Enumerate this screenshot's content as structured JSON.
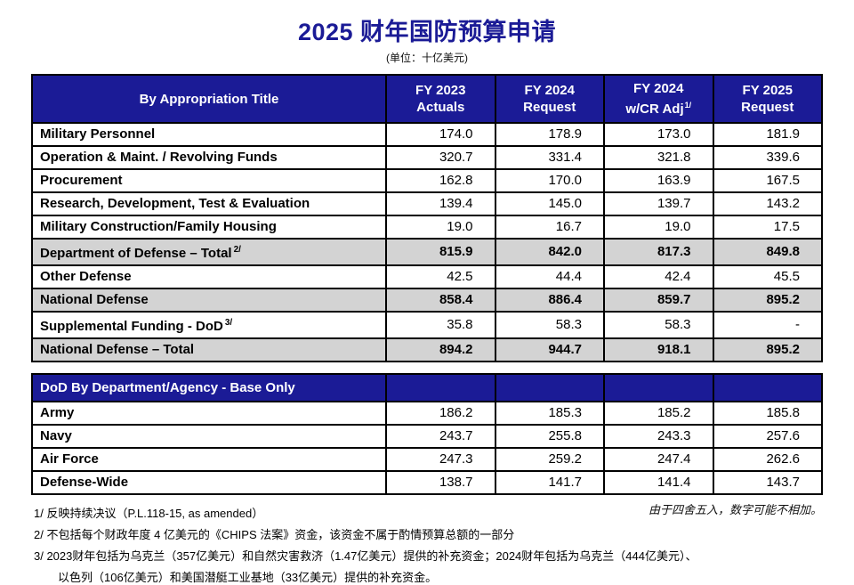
{
  "page": {
    "title": "2025 财年国防预算申请",
    "subtitle": "(单位：十亿美元)",
    "rounding_note": "由于四舍五入，数字可能不相加。"
  },
  "main_table": {
    "header": {
      "col0": "By Appropriation Title",
      "cols": [
        {
          "line1": "FY 2023",
          "line2": "Actuals",
          "sup": ""
        },
        {
          "line1": "FY 2024",
          "line2": "Request",
          "sup": ""
        },
        {
          "line1": "FY 2024",
          "line2": "w/CR Adj",
          "sup": "1/"
        },
        {
          "line1": "FY 2025",
          "line2": "Request",
          "sup": ""
        }
      ]
    },
    "rows": [
      {
        "label": "Military Personnel",
        "sup": "",
        "values": [
          "174.0",
          "178.9",
          "173.0",
          "181.9"
        ],
        "shaded": false
      },
      {
        "label": "Operation & Maint. / Revolving Funds",
        "sup": "",
        "values": [
          "320.7",
          "331.4",
          "321.8",
          "339.6"
        ],
        "shaded": false
      },
      {
        "label": "Procurement",
        "sup": "",
        "values": [
          "162.8",
          "170.0",
          "163.9",
          "167.5"
        ],
        "shaded": false
      },
      {
        "label": "Research, Development, Test & Evaluation",
        "sup": "",
        "values": [
          "139.4",
          "145.0",
          "139.7",
          "143.2"
        ],
        "shaded": false
      },
      {
        "label": "Military Construction/Family Housing",
        "sup": "",
        "values": [
          "19.0",
          "16.7",
          "19.0",
          "17.5"
        ],
        "shaded": false
      },
      {
        "label": "Department of Defense – Total",
        "sup": "2/",
        "values": [
          "815.9",
          "842.0",
          "817.3",
          "849.8"
        ],
        "shaded": true
      },
      {
        "label": "Other Defense",
        "sup": "",
        "values": [
          "42.5",
          "44.4",
          "42.4",
          "45.5"
        ],
        "shaded": false
      },
      {
        "label": "National Defense",
        "sup": "",
        "values": [
          "858.4",
          "886.4",
          "859.7",
          "895.2"
        ],
        "shaded": true
      },
      {
        "label": "Supplemental Funding - DoD",
        "sup": "3/",
        "values": [
          "35.8",
          "58.3",
          "58.3",
          "-"
        ],
        "shaded": false
      },
      {
        "label": "National Defense – Total",
        "sup": "",
        "values": [
          "894.2",
          "944.7",
          "918.1",
          "895.2"
        ],
        "shaded": true
      }
    ]
  },
  "dept_table": {
    "header": "DoD By Department/Agency - Base Only",
    "rows": [
      {
        "label": "Army",
        "sup": "",
        "values": [
          "186.2",
          "185.3",
          "185.2",
          "185.8"
        ],
        "shaded": false
      },
      {
        "label": "Navy",
        "sup": "",
        "values": [
          "243.7",
          "255.8",
          "243.3",
          "257.6"
        ],
        "shaded": false
      },
      {
        "label": "Air Force",
        "sup": "",
        "values": [
          "247.3",
          "259.2",
          "247.4",
          "262.6"
        ],
        "shaded": false
      },
      {
        "label": "Defense-Wide",
        "sup": "",
        "values": [
          "138.7",
          "141.7",
          "141.4",
          "143.7"
        ],
        "shaded": false
      }
    ]
  },
  "footnotes": [
    {
      "text": "1/ 反映持续决议（P.L.118-15, as amended）",
      "indent": false
    },
    {
      "text": "2/ 不包括每个财政年度 4 亿美元的《CHIPS 法案》资金，该资金不属于酌情预算总额的一部分",
      "indent": false
    },
    {
      "text": "3/ 2023财年包括为乌克兰（357亿美元）和自然灾害救济（1.47亿美元）提供的补充资金；2024财年包括为乌克兰（444亿美元）、",
      "indent": false
    },
    {
      "text": "以色列（106亿美元）和美国潜艇工业基地（33亿美元）提供的补充资金。",
      "indent": true
    }
  ],
  "colors": {
    "header_bg": "#1b1b96",
    "shaded_row": "#d3d3d3",
    "title_color": "#1b1b96"
  }
}
